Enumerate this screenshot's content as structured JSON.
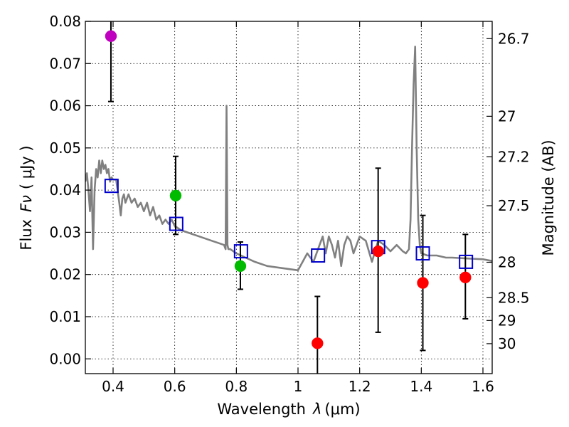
{
  "chart_data": {
    "type": "scatter",
    "xlabel": "Wavelength",
    "xlabel_symbol": "λ",
    "xlabel_unit": "(μm)",
    "ylabel": "Flux",
    "ylabel_symbol": "Fν",
    "ylabel_unit": "( μJy )",
    "y2label": "Magnitude (AB)",
    "xlim": [
      0.31,
      1.63
    ],
    "ylim": [
      -0.0035,
      0.08
    ],
    "grid": true,
    "x_ticks": [
      0.4,
      0.6,
      0.8,
      1.0,
      1.2,
      1.4,
      1.6
    ],
    "x_tick_labels": [
      "0.4",
      "0.6",
      "0.8",
      "1",
      "1.2",
      "1.4",
      "1.6"
    ],
    "y_ticks": [
      0.0,
      0.01,
      0.02,
      0.03,
      0.04,
      0.05,
      0.06,
      0.07,
      0.08
    ],
    "y_tick_labels": [
      "0.00",
      "0.01",
      "0.02",
      "0.03",
      "0.04",
      "0.05",
      "0.06",
      "0.07",
      "0.08"
    ],
    "mag_ticks": [
      {
        "label": "26.7",
        "flux": 0.0759
      },
      {
        "label": "27",
        "flux": 0.0575
      },
      {
        "label": "27.2",
        "flux": 0.0479
      },
      {
        "label": "27.5",
        "flux": 0.0363
      },
      {
        "label": "28",
        "flux": 0.0229
      },
      {
        "label": "28.5",
        "flux": 0.0145
      },
      {
        "label": "29",
        "flux": 0.0091
      },
      {
        "label": "30",
        "flux": 0.0036
      }
    ],
    "series": [
      {
        "name": "model SED",
        "kind": "line",
        "color": "#808080",
        "x": [
          0.31,
          0.315,
          0.32,
          0.325,
          0.33,
          0.335,
          0.34,
          0.345,
          0.35,
          0.355,
          0.36,
          0.365,
          0.37,
          0.375,
          0.38,
          0.385,
          0.39,
          0.395,
          0.4,
          0.41,
          0.42,
          0.425,
          0.43,
          0.435,
          0.44,
          0.45,
          0.46,
          0.47,
          0.48,
          0.49,
          0.5,
          0.51,
          0.52,
          0.53,
          0.54,
          0.55,
          0.56,
          0.57,
          0.58,
          0.59,
          0.6,
          0.62,
          0.64,
          0.66,
          0.68,
          0.7,
          0.72,
          0.74,
          0.76,
          0.765,
          0.768,
          0.771,
          0.774,
          0.78,
          0.8,
          0.83,
          0.86,
          0.9,
          0.95,
          1.0,
          1.03,
          1.05,
          1.07,
          1.08,
          1.09,
          1.1,
          1.11,
          1.12,
          1.13,
          1.14,
          1.15,
          1.16,
          1.17,
          1.18,
          1.2,
          1.22,
          1.24,
          1.26,
          1.28,
          1.3,
          1.32,
          1.34,
          1.35,
          1.36,
          1.365,
          1.37,
          1.375,
          1.38,
          1.385,
          1.39,
          1.395,
          1.4,
          1.42,
          1.45,
          1.48,
          1.5,
          1.55,
          1.6,
          1.63
        ],
        "y": [
          0.042,
          0.044,
          0.04,
          0.035,
          0.043,
          0.026,
          0.04,
          0.045,
          0.043,
          0.047,
          0.044,
          0.047,
          0.045,
          0.046,
          0.044,
          0.045,
          0.042,
          0.043,
          0.0425,
          0.0425,
          0.037,
          0.034,
          0.038,
          0.039,
          0.037,
          0.039,
          0.037,
          0.038,
          0.036,
          0.037,
          0.035,
          0.037,
          0.034,
          0.036,
          0.033,
          0.034,
          0.032,
          0.033,
          0.032,
          0.033,
          0.0315,
          0.0305,
          0.03,
          0.0295,
          0.029,
          0.0285,
          0.028,
          0.0275,
          0.027,
          0.026,
          0.06,
          0.027,
          0.026,
          0.026,
          0.025,
          0.024,
          0.023,
          0.022,
          0.0215,
          0.021,
          0.025,
          0.023,
          0.027,
          0.029,
          0.025,
          0.029,
          0.027,
          0.024,
          0.028,
          0.022,
          0.027,
          0.029,
          0.028,
          0.025,
          0.029,
          0.028,
          0.023,
          0.028,
          0.027,
          0.0255,
          0.027,
          0.0255,
          0.025,
          0.026,
          0.033,
          0.05,
          0.065,
          0.074,
          0.05,
          0.033,
          0.027,
          0.025,
          0.0245,
          0.0245,
          0.024,
          0.024,
          0.0238,
          0.0236,
          0.0232
        ]
      },
      {
        "name": "model photometry",
        "kind": "square",
        "color": "#0000cc",
        "x": [
          0.395,
          0.605,
          0.815,
          1.065,
          1.26,
          1.405,
          1.545
        ],
        "y": [
          0.041,
          0.032,
          0.0255,
          0.0245,
          0.0265,
          0.025,
          0.023
        ]
      },
      {
        "name": "observed photometry",
        "kind": "errorbar",
        "x": [
          0.393,
          0.603,
          0.813,
          1.063,
          1.26,
          1.405,
          1.543
        ],
        "y": [
          0.0765,
          0.0387,
          0.022,
          0.0037,
          0.0255,
          0.018,
          0.0193
        ],
        "err_low": [
          0.061,
          0.0295,
          0.0165,
          -0.004,
          0.0063,
          0.002,
          0.0095
        ],
        "err_high": [
          0.082,
          0.048,
          0.0277,
          0.0148,
          0.0452,
          0.034,
          0.0295
        ],
        "colors": [
          "#bf00bf",
          "#00bb00",
          "#00bb00",
          "#ff0000",
          "#ff0000",
          "#ff0000",
          "#ff0000"
        ]
      }
    ]
  }
}
